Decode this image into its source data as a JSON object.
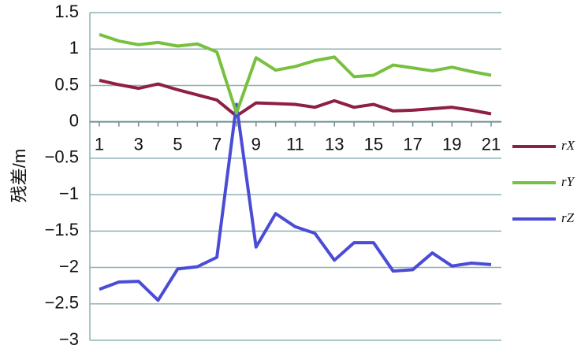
{
  "chart_data": {
    "type": "line",
    "y_label": "残差/m",
    "categories": [
      1,
      null,
      3,
      null,
      5,
      null,
      7,
      null,
      9,
      null,
      11,
      null,
      13,
      null,
      15,
      null,
      17,
      null,
      19,
      null,
      21
    ],
    "series": [
      {
        "name": "rX",
        "color": "#8e1f45",
        "values": [
          0.57,
          0.51,
          0.46,
          0.52,
          0.44,
          0.37,
          0.3,
          0.08,
          0.26,
          0.25,
          0.24,
          0.2,
          0.29,
          0.2,
          0.24,
          0.15,
          0.16,
          0.18,
          0.2,
          0.16,
          0.11
        ]
      },
      {
        "name": "rY",
        "color": "#78c040",
        "values": [
          1.2,
          1.11,
          1.06,
          1.09,
          1.04,
          1.07,
          0.96,
          0.12,
          0.88,
          0.71,
          0.76,
          0.84,
          0.89,
          0.62,
          0.64,
          0.78,
          0.74,
          0.7,
          0.75,
          0.69,
          0.64
        ]
      },
      {
        "name": "rZ",
        "color": "#4a4cd6",
        "values": [
          -2.3,
          -2.2,
          -2.19,
          -2.45,
          -2.02,
          -1.99,
          -1.86,
          0.24,
          -1.72,
          -1.26,
          -1.44,
          -1.53,
          -1.9,
          -1.66,
          -1.66,
          -2.05,
          -2.03,
          -1.8,
          -1.98,
          -1.94,
          -1.96
        ]
      }
    ],
    "ylim": [
      -3,
      1.5
    ],
    "yticks": [
      {
        "value": -3,
        "label": "−3"
      },
      {
        "value": -2.5,
        "label": "−2.5"
      },
      {
        "value": -2,
        "label": "−2"
      },
      {
        "value": -1.5,
        "label": "−1.5"
      },
      {
        "value": -1,
        "label": "−1"
      },
      {
        "value": -0.5,
        "label": "−0.5"
      },
      0,
      0.5,
      1,
      1.5
    ],
    "grid": true
  }
}
